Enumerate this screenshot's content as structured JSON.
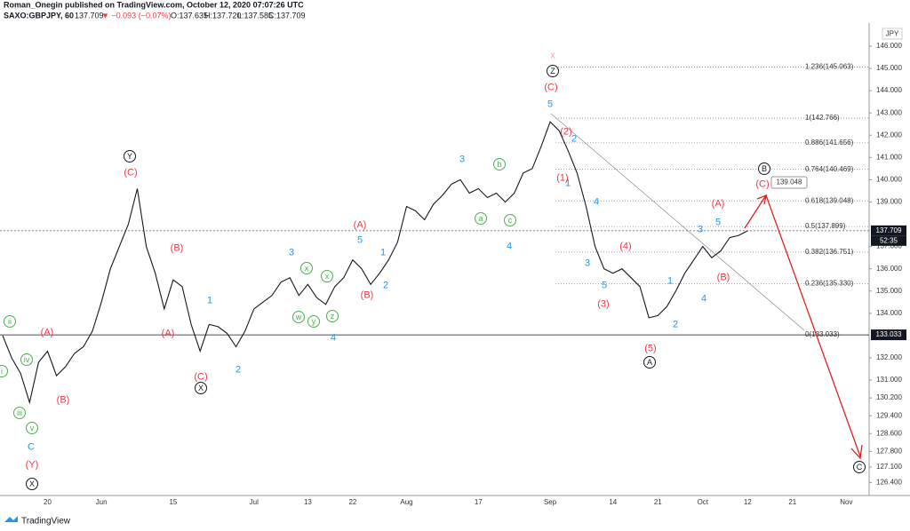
{
  "header": {
    "publisher": "Roman_Onegin published on TradingView.com, October 12, 2020 07:07:26 UTC",
    "symbol": "SAXO:GBPJPY, 60",
    "last": "137.709",
    "change": "▼ −0.093 (−0.07%)",
    "ohlc": [
      "O:137.635",
      "H:137.720",
      "L:137.585",
      "C:137.709"
    ]
  },
  "chart_data": {
    "type": "line",
    "currency": "JPY",
    "color": "#131722",
    "categories": [
      null,
      null,
      null,
      null,
      null,
      "20",
      null,
      null,
      null,
      null,
      null,
      "Jun",
      null,
      null,
      null,
      null,
      null,
      null,
      null,
      "15",
      null,
      null,
      null,
      null,
      null,
      null,
      null,
      null,
      "Jul",
      null,
      null,
      null,
      null,
      null,
      "13",
      null,
      null,
      null,
      null,
      "22",
      null,
      null,
      null,
      null,
      null,
      "Aug",
      null,
      null,
      null,
      null,
      null,
      null,
      null,
      "17",
      null,
      null,
      null,
      null,
      null,
      null,
      null,
      "Sep",
      null,
      null,
      null,
      null,
      null,
      null,
      "14",
      null,
      null,
      null,
      null,
      "21",
      null,
      null,
      null,
      null,
      "Oct",
      null,
      null,
      null,
      null,
      "12",
      null,
      null,
      null,
      null,
      "21",
      null,
      null,
      null,
      null,
      null,
      "Nov",
      null
    ],
    "values": [
      133.0,
      132.0,
      131.3,
      130.0,
      131.8,
      132.3,
      131.2,
      131.6,
      132.2,
      132.5,
      133.2,
      134.5,
      136.0,
      137.0,
      138.0,
      139.6,
      137.0,
      135.8,
      134.2,
      135.5,
      135.2,
      133.5,
      132.3,
      133.5,
      133.4,
      133.1,
      132.5,
      133.2,
      134.2,
      134.5,
      134.8,
      135.4,
      135.6,
      134.8,
      135.3,
      134.7,
      134.4,
      135.2,
      135.6,
      136.4,
      136.0,
      135.3,
      135.8,
      136.4,
      137.2,
      138.8,
      138.6,
      138.2,
      138.9,
      139.3,
      139.8,
      140.0,
      139.4,
      139.6,
      139.2,
      139.4,
      139.0,
      139.4,
      140.3,
      140.5,
      141.5,
      142.6,
      142.2,
      141.3,
      140.3,
      138.8,
      137.0,
      136.0,
      135.8,
      136.0,
      135.6,
      135.2,
      133.8,
      133.9,
      134.3,
      135.0,
      135.8,
      136.4,
      137.0,
      136.5,
      136.8,
      137.4,
      137.5,
      137.709,
      null,
      null,
      null,
      null,
      null,
      null,
      null,
      null,
      null,
      null,
      null,
      null
    ],
    "ylim": [
      125.3,
      146.9
    ],
    "yticks": [
      {
        "value": 146,
        "label": "146.000"
      },
      {
        "value": 145,
        "label": "145.000"
      },
      {
        "value": 144,
        "label": "144.000"
      },
      {
        "value": 143,
        "label": "143.000"
      },
      {
        "value": 142,
        "label": "142.000"
      },
      {
        "value": 141,
        "label": "141.000"
      },
      {
        "value": 140,
        "label": "140.000"
      },
      {
        "value": 139,
        "label": "139.000"
      },
      {
        "value": 137,
        "label": "137.000"
      },
      {
        "value": 136,
        "label": "136.000"
      },
      {
        "value": 135,
        "label": "135.000"
      },
      {
        "value": 134,
        "label": "134.000"
      },
      {
        "value": 132,
        "label": "132.000"
      },
      {
        "value": 131,
        "label": "131.000"
      },
      {
        "value": 130.2,
        "label": "130.200"
      },
      {
        "value": 129.4,
        "label": "129.400"
      },
      {
        "value": 128.6,
        "label": "128.600"
      },
      {
        "value": 127.8,
        "label": "127.800"
      },
      {
        "value": 127.1,
        "label": "127.100"
      },
      {
        "value": 126.4,
        "label": "126.400"
      }
    ],
    "last_price": 137.709,
    "last_price_label": "137.709",
    "countdown": "52:35",
    "level_label": "133.033",
    "target_label": "139.048",
    "fib_levels": [
      {
        "label": "1.236(145.063)",
        "price": 145.063
      },
      {
        "label": "1(142.766)",
        "price": 142.766
      },
      {
        "label": "0.886(141.656)",
        "price": 141.656
      },
      {
        "label": "0.764(140.469)",
        "price": 140.469
      },
      {
        "label": "0.618(139.048)",
        "price": 139.048
      },
      {
        "label": "0.5(137.899)",
        "price": 137.899
      },
      {
        "label": "0.382(136.751)",
        "price": 136.751
      },
      {
        "label": "0.236(135.330)",
        "price": 135.33
      },
      {
        "label": "0(133.033)",
        "price": 133.033
      }
    ],
    "annotations": [
      "C",
      "1",
      "2",
      "3",
      "4",
      "5",
      "1",
      "2",
      "3",
      "4",
      "5",
      "1",
      "2",
      "3",
      "4",
      "5",
      "1",
      "2",
      "3",
      "4",
      "5",
      "(Y)",
      "(A)",
      "(B)",
      "(C)",
      "(B)",
      "(A)",
      "(C)",
      "(A)",
      "(B)",
      "(C)",
      "(2)",
      "(1)",
      "(4)",
      "(3)",
      "(5)",
      "(A)",
      "(B)",
      "(C)",
      "ii",
      "iv",
      "iii",
      "v",
      "i",
      "a",
      "b",
      "c",
      "x",
      "x",
      "w",
      "y",
      "z",
      "Y",
      "X",
      "Z",
      "A",
      "B",
      "C",
      "X",
      "x"
    ]
  },
  "footer": {
    "brand": "TradingView"
  }
}
